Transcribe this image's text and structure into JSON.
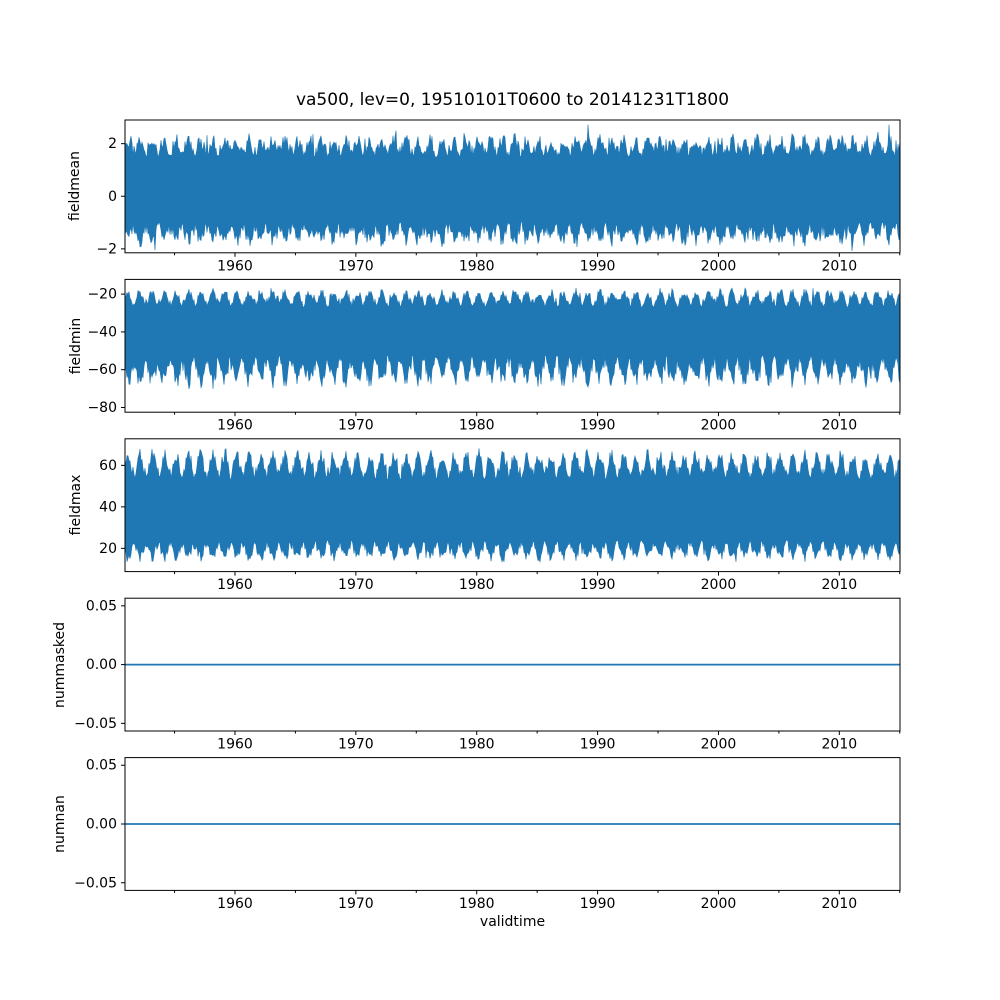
{
  "chart_data": {
    "type": "line",
    "title": "va500, lev=0, 19510101T0600 to 20141231T1800",
    "xlabel": "validtime",
    "line_color": "#1f77b4",
    "background_color": "#ffffff",
    "frame_color": "#000000",
    "x_axis": {
      "range": [
        1950.9,
        2015.02
      ],
      "major_ticks": [
        {
          "value": 1960,
          "label": "1960"
        },
        {
          "value": 1970,
          "label": "1970"
        },
        {
          "value": 1980,
          "label": "1980"
        },
        {
          "value": 1990,
          "label": "1990"
        },
        {
          "value": 2000,
          "label": "2000"
        },
        {
          "value": 2010,
          "label": "2010"
        }
      ],
      "minor_ticks": [
        1955,
        1965,
        1975,
        1985,
        1995,
        2005,
        2015
      ]
    },
    "subplots": [
      {
        "ylabel": "fieldmean",
        "ylim": [
          -2.15,
          2.9
        ],
        "yticks": [
          {
            "value": 2,
            "label": "2"
          },
          {
            "value": 0,
            "label": "0"
          },
          {
            "value": -2,
            "label": "−2"
          }
        ],
        "series": {
          "type": "noisy-band",
          "description": "6-hourly field mean, dense noisy band",
          "typical_range": [
            -1.3,
            1.9
          ],
          "extreme_range": [
            -2.1,
            2.7
          ],
          "seed": 101,
          "envelope": {
            "top": {
              "base": 1.45,
              "season": 0.45,
              "noise": 0.5,
              "spike": 0.65,
              "clip": 2.72
            },
            "bottom": {
              "base": -0.95,
              "season": -0.45,
              "noise": -0.55,
              "spike": -0.6,
              "clip": -2.08
            }
          }
        }
      },
      {
        "ylabel": "fieldmin",
        "ylim": [
          -82.5,
          -12.2
        ],
        "yticks": [
          {
            "value": -20,
            "label": "−20"
          },
          {
            "value": -40,
            "label": "−40"
          },
          {
            "value": -60,
            "label": "−60"
          },
          {
            "value": -80,
            "label": "−80"
          }
        ],
        "series": {
          "type": "noisy-band",
          "description": "6-hourly field minimum, dense noisy band",
          "typical_range": [
            -60,
            -23
          ],
          "extreme_range": [
            -79,
            -17
          ],
          "seed": 202,
          "envelope": {
            "top": {
              "base": -27,
              "season": 6,
              "noise": 4.5,
              "spike": 5,
              "clip": -16.8
            },
            "bottom": {
              "base": -52,
              "season": -10,
              "noise": -8.5,
              "spike": -9,
              "clip": -79.5
            }
          }
        }
      },
      {
        "ylabel": "fieldmax",
        "ylim": [
          8.8,
          72.8
        ],
        "yticks": [
          {
            "value": 60,
            "label": "60"
          },
          {
            "value": 40,
            "label": "40"
          },
          {
            "value": 20,
            "label": "20"
          }
        ],
        "series": {
          "type": "noisy-band",
          "description": "6-hourly field maximum, dense noisy band",
          "typical_range": [
            20,
            60
          ],
          "extreme_range": [
            13.5,
            71.5
          ],
          "seed": 303,
          "envelope": {
            "top": {
              "base": 53,
              "season": 9,
              "noise": 6,
              "spike": 5.5,
              "clip": 71.5
            },
            "bottom": {
              "base": 24,
              "season": -6,
              "noise": -4.5,
              "spike": -5,
              "clip": 13.5
            }
          }
        }
      },
      {
        "ylabel": "nummasked",
        "ylim": [
          -0.0565,
          0.0565
        ],
        "yticks": [
          {
            "value": 0.05,
            "label": "0.05"
          },
          {
            "value": 0,
            "label": "0.00"
          },
          {
            "value": -0.05,
            "label": "−0.05"
          }
        ],
        "series": {
          "type": "flat",
          "description": "constant zero line",
          "value": 0
        }
      },
      {
        "ylabel": "numnan",
        "ylim": [
          -0.0565,
          0.0565
        ],
        "yticks": [
          {
            "value": 0.05,
            "label": "0.05"
          },
          {
            "value": 0,
            "label": "0.00"
          },
          {
            "value": -0.05,
            "label": "−0.05"
          }
        ],
        "series": {
          "type": "flat",
          "description": "constant zero line",
          "value": 0
        }
      }
    ]
  }
}
